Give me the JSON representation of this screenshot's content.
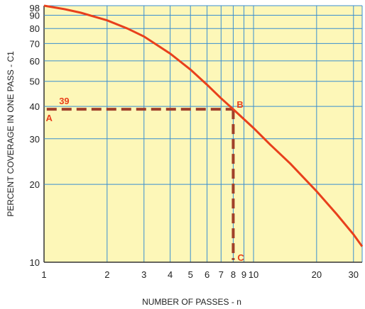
{
  "chart_data": {
    "type": "line",
    "title": "",
    "xlabel": "NUMBER OF PASSES - n",
    "ylabel": "PERCENT COVERAGE IN ONE PASS - C1",
    "xscale": "log",
    "yscale": "log",
    "xlim": [
      1,
      33
    ],
    "ylim": [
      10,
      98
    ],
    "grid": true,
    "x_ticks": [
      {
        "value": 1,
        "label": "1"
      },
      {
        "value": 2,
        "label": "2"
      },
      {
        "value": 3,
        "label": "3"
      },
      {
        "value": 4,
        "label": "4"
      },
      {
        "value": 5,
        "label": "5"
      },
      {
        "value": 6,
        "label": "6"
      },
      {
        "value": 7,
        "label": "7"
      },
      {
        "value": 8,
        "label": "8"
      },
      {
        "value": 9,
        "label": "9"
      },
      {
        "value": 10,
        "label": "10"
      },
      {
        "value": 20,
        "label": "20"
      },
      {
        "value": 30,
        "label": "30"
      }
    ],
    "y_ticks": [
      {
        "value": 10,
        "label": "10"
      },
      {
        "value": 20,
        "label": "20"
      },
      {
        "value": 30,
        "label": "30"
      },
      {
        "value": 40,
        "label": "40"
      },
      {
        "value": 50,
        "label": "50"
      },
      {
        "value": 60,
        "label": "60"
      },
      {
        "value": 70,
        "label": "70"
      },
      {
        "value": 80,
        "label": "80"
      },
      {
        "value": 90,
        "label": "90"
      },
      {
        "value": 98,
        "label": "98"
      }
    ],
    "series": [
      {
        "color": "#e8401c",
        "points": [
          [
            1,
            98
          ],
          [
            1.25,
            95
          ],
          [
            1.5,
            92
          ],
          [
            2,
            86
          ],
          [
            2.5,
            80
          ],
          [
            3,
            74.5
          ],
          [
            4,
            64
          ],
          [
            5,
            55.5
          ],
          [
            6,
            48.5
          ],
          [
            7,
            43
          ],
          [
            8,
            39
          ],
          [
            10,
            33
          ],
          [
            12,
            28.5
          ],
          [
            15,
            24
          ],
          [
            20,
            18.8
          ],
          [
            25,
            15.3
          ],
          [
            30,
            12.8
          ],
          [
            33,
            11.5
          ]
        ]
      }
    ],
    "guide": {
      "color": "#a0402a",
      "path": [
        [
          1.03,
          39
        ],
        [
          8,
          39
        ],
        [
          8,
          10.2
        ]
      ]
    },
    "annotations": [
      {
        "text": "39",
        "x": 1.18,
        "y": 39,
        "color": "#e8401c"
      },
      {
        "text": "A",
        "x": 1.02,
        "y": 39,
        "color": "#e8401c"
      },
      {
        "text": "B",
        "x": 8,
        "y": 39,
        "color": "#e8401c"
      },
      {
        "text": "C",
        "x": 8,
        "y": 10,
        "color": "#e8401c"
      }
    ],
    "colors": {
      "plot_background": "#fdf7b8",
      "grid": "#3a8fd0"
    }
  }
}
